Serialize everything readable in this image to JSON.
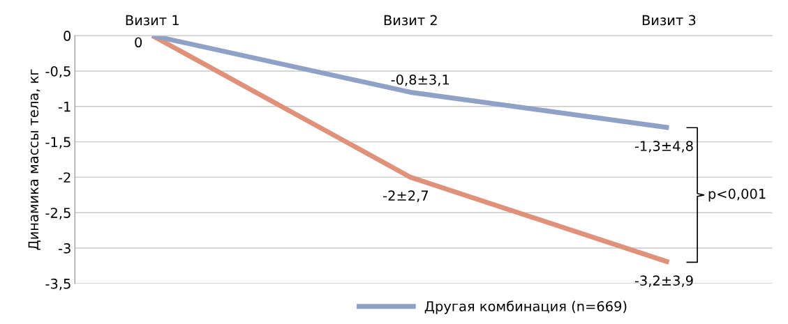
{
  "chart_data": {
    "type": "line",
    "ylabel": "Динамика массы тела, кг",
    "categories": [
      "Визит 1",
      "Визит 2",
      "Визит 3"
    ],
    "series": [
      {
        "color": "#e0917a",
        "values": [
          0,
          -2,
          -3.2
        ],
        "value_labels": [
          "0",
          "-2±2,7",
          "-3,2±3,9"
        ]
      },
      {
        "name": "Другая комбинация (n=669)",
        "color": "#8fa1c7",
        "values": [
          0,
          -0.8,
          -1.3
        ],
        "value_labels": [
          null,
          "-0,8±3,1",
          "-1,3±4,8"
        ]
      }
    ],
    "ylim": [
      -3.5,
      0
    ],
    "yticks": [
      {
        "value": -3.5,
        "label": "-3,5"
      },
      {
        "value": -3,
        "label": "-3"
      },
      {
        "value": -2.5,
        "label": "-2,5"
      },
      {
        "value": -2,
        "label": "-2"
      },
      {
        "value": -1.5,
        "label": "-1,5"
      },
      {
        "value": -1,
        "label": "-1"
      },
      {
        "value": -0.5,
        "label": "-0,5"
      },
      0
    ],
    "grid": "y",
    "legend": "bottom",
    "marker": "none",
    "line_style": "solid",
    "annotations": [
      "p<0,001"
    ]
  }
}
